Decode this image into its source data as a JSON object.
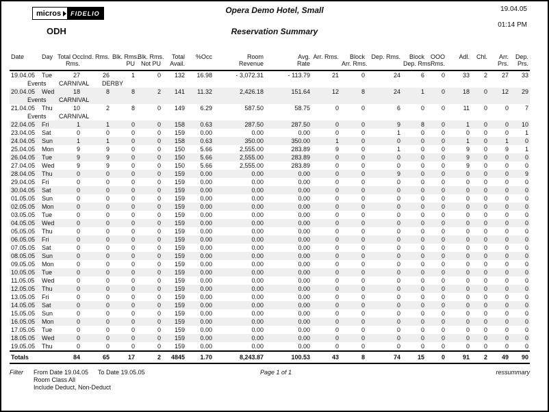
{
  "header": {
    "logo": {
      "micros": "micros",
      "fidelio": "FIDELIO"
    },
    "property_code": "ODH",
    "hotel_name": "Opera Demo Hotel, Small",
    "report_title": "Reservation Summary",
    "report_date": "19.04.05",
    "report_time": "01:14 PM"
  },
  "table": {
    "events_label": "Events",
    "columns": [
      {
        "key": "date",
        "label_lines": [
          "Date"
        ],
        "align": "left"
      },
      {
        "key": "day",
        "label_lines": [
          "Day"
        ],
        "align": "left"
      },
      {
        "key": "total-occ-rms",
        "label_lines": [
          "Total Occ.",
          "Rms."
        ],
        "align": "right"
      },
      {
        "key": "ind-rms",
        "label_lines": [
          "Ind. Rms."
        ],
        "align": "right"
      },
      {
        "key": "blk-rms-pu",
        "label_lines": [
          "Blk. Rms.",
          "PU"
        ],
        "align": "right"
      },
      {
        "key": "blk-rms-not-pu",
        "label_lines": [
          "Blk. Rms.",
          "Not PU"
        ],
        "align": "right"
      },
      {
        "key": "total-avail",
        "label_lines": [
          "Total",
          "Avail."
        ],
        "align": "right"
      },
      {
        "key": "pct-occ",
        "label_lines": [
          "%Occ"
        ],
        "align": "right"
      },
      {
        "key": "room-revenue",
        "label_lines": [
          "Room",
          "Revenue"
        ],
        "align": "right"
      },
      {
        "key": "avg-rate",
        "label_lines": [
          "Avg.",
          "Rate"
        ],
        "align": "right"
      },
      {
        "key": "arr-rms",
        "label_lines": [
          "Arr. Rms."
        ],
        "align": "right"
      },
      {
        "key": "block-arr-rms",
        "label_lines": [
          "Block",
          "Arr. Rms."
        ],
        "align": "right"
      },
      {
        "key": "dep-rms",
        "label_lines": [
          "Dep. Rms."
        ],
        "align": "right"
      },
      {
        "key": "block-dep-rms",
        "label_lines": [
          "Block",
          "Dep. Rms."
        ],
        "align": "right"
      },
      {
        "key": "ooo-rms",
        "label_lines": [
          "OOO",
          "Rms."
        ],
        "align": "right"
      },
      {
        "key": "adl",
        "label_lines": [
          "Adl."
        ],
        "align": "right"
      },
      {
        "key": "chl",
        "label_lines": [
          "Chl."
        ],
        "align": "right"
      },
      {
        "key": "arr-prs",
        "label_lines": [
          "Arr.",
          "Prs."
        ],
        "align": "right"
      },
      {
        "key": "dep-prs",
        "label_lines": [
          "Dep.",
          "Prs."
        ],
        "align": "right"
      }
    ],
    "rows": [
      {
        "date": "19.04.05",
        "day": "Tue",
        "values": [
          "27",
          "26",
          "1",
          "0",
          "132",
          "16.98",
          "- 3,072.31",
          "- 113.79",
          "21",
          "0",
          "24",
          "6",
          "0",
          "33",
          "2",
          "27",
          "33"
        ],
        "events": [
          "CARNIVAL",
          "DERBY"
        ]
      },
      {
        "date": "20.04.05",
        "day": "Wed",
        "values": [
          "18",
          "8",
          "8",
          "2",
          "141",
          "11.32",
          "2,426.18",
          "151.64",
          "12",
          "8",
          "24",
          "1",
          "0",
          "18",
          "0",
          "12",
          "29"
        ],
        "events": [
          "CARNIVAL"
        ]
      },
      {
        "date": "21.04.05",
        "day": "Thu",
        "values": [
          "10",
          "2",
          "8",
          "0",
          "149",
          "6.29",
          "587.50",
          "58.75",
          "0",
          "0",
          "6",
          "0",
          "0",
          "11",
          "0",
          "0",
          "7"
        ],
        "events": [
          "CARNIVAL"
        ]
      },
      {
        "date": "22.04.05",
        "day": "Fri",
        "values": [
          "1",
          "1",
          "0",
          "0",
          "158",
          "0.63",
          "287.50",
          "287.50",
          "0",
          "0",
          "9",
          "8",
          "0",
          "1",
          "0",
          "0",
          "10"
        ]
      },
      {
        "date": "23.04.05",
        "day": "Sat",
        "values": [
          "0",
          "0",
          "0",
          "0",
          "159",
          "0.00",
          "0.00",
          "0.00",
          "0",
          "0",
          "1",
          "0",
          "0",
          "0",
          "0",
          "0",
          "1"
        ]
      },
      {
        "date": "24.04.05",
        "day": "Sun",
        "values": [
          "1",
          "1",
          "0",
          "0",
          "158",
          "0.63",
          "350.00",
          "350.00",
          "1",
          "0",
          "0",
          "0",
          "0",
          "1",
          "0",
          "1",
          "0"
        ]
      },
      {
        "date": "25.04.05",
        "day": "Mon",
        "values": [
          "9",
          "9",
          "0",
          "0",
          "150",
          "5.66",
          "2,555.00",
          "283.89",
          "9",
          "0",
          "1",
          "0",
          "0",
          "9",
          "0",
          "9",
          "1"
        ]
      },
      {
        "date": "26.04.05",
        "day": "Tue",
        "values": [
          "9",
          "9",
          "0",
          "0",
          "150",
          "5.66",
          "2,555.00",
          "283.89",
          "0",
          "0",
          "0",
          "0",
          "0",
          "9",
          "0",
          "0",
          "0"
        ]
      },
      {
        "date": "27.04.05",
        "day": "Wed",
        "values": [
          "9",
          "9",
          "0",
          "0",
          "150",
          "5.66",
          "2,555.00",
          "283.89",
          "0",
          "0",
          "0",
          "0",
          "0",
          "9",
          "0",
          "0",
          "0"
        ]
      },
      {
        "date": "28.04.05",
        "day": "Thu",
        "values": [
          "0",
          "0",
          "0",
          "0",
          "159",
          "0.00",
          "0.00",
          "0.00",
          "0",
          "0",
          "9",
          "0",
          "0",
          "0",
          "0",
          "0",
          "9"
        ]
      },
      {
        "date": "29.04.05",
        "day": "Fri",
        "values": [
          "0",
          "0",
          "0",
          "0",
          "159",
          "0.00",
          "0.00",
          "0.00",
          "0",
          "0",
          "0",
          "0",
          "0",
          "0",
          "0",
          "0",
          "0"
        ]
      },
      {
        "date": "30.04.05",
        "day": "Sat",
        "values": [
          "0",
          "0",
          "0",
          "0",
          "159",
          "0.00",
          "0.00",
          "0.00",
          "0",
          "0",
          "0",
          "0",
          "0",
          "0",
          "0",
          "0",
          "0"
        ]
      },
      {
        "date": "01.05.05",
        "day": "Sun",
        "values": [
          "0",
          "0",
          "0",
          "0",
          "159",
          "0.00",
          "0.00",
          "0.00",
          "0",
          "0",
          "0",
          "0",
          "0",
          "0",
          "0",
          "0",
          "0"
        ]
      },
      {
        "date": "02.05.05",
        "day": "Mon",
        "values": [
          "0",
          "0",
          "0",
          "0",
          "159",
          "0.00",
          "0.00",
          "0.00",
          "0",
          "0",
          "0",
          "0",
          "0",
          "0",
          "0",
          "0",
          "0"
        ]
      },
      {
        "date": "03.05.05",
        "day": "Tue",
        "values": [
          "0",
          "0",
          "0",
          "0",
          "159",
          "0.00",
          "0.00",
          "0.00",
          "0",
          "0",
          "0",
          "0",
          "0",
          "0",
          "0",
          "0",
          "0"
        ]
      },
      {
        "date": "04.05.05",
        "day": "Wed",
        "values": [
          "0",
          "0",
          "0",
          "0",
          "159",
          "0.00",
          "0.00",
          "0.00",
          "0",
          "0",
          "0",
          "0",
          "0",
          "0",
          "0",
          "0",
          "0"
        ]
      },
      {
        "date": "05.05.05",
        "day": "Thu",
        "values": [
          "0",
          "0",
          "0",
          "0",
          "159",
          "0.00",
          "0.00",
          "0.00",
          "0",
          "0",
          "0",
          "0",
          "0",
          "0",
          "0",
          "0",
          "0"
        ]
      },
      {
        "date": "06.05.05",
        "day": "Fri",
        "values": [
          "0",
          "0",
          "0",
          "0",
          "159",
          "0.00",
          "0.00",
          "0.00",
          "0",
          "0",
          "0",
          "0",
          "0",
          "0",
          "0",
          "0",
          "0"
        ]
      },
      {
        "date": "07.05.05",
        "day": "Sat",
        "values": [
          "0",
          "0",
          "0",
          "0",
          "159",
          "0.00",
          "0.00",
          "0.00",
          "0",
          "0",
          "0",
          "0",
          "0",
          "0",
          "0",
          "0",
          "0"
        ]
      },
      {
        "date": "08.05.05",
        "day": "Sun",
        "values": [
          "0",
          "0",
          "0",
          "0",
          "159",
          "0.00",
          "0.00",
          "0.00",
          "0",
          "0",
          "0",
          "0",
          "0",
          "0",
          "0",
          "0",
          "0"
        ]
      },
      {
        "date": "09.05.05",
        "day": "Mon",
        "values": [
          "0",
          "0",
          "0",
          "0",
          "159",
          "0.00",
          "0.00",
          "0.00",
          "0",
          "0",
          "0",
          "0",
          "0",
          "0",
          "0",
          "0",
          "0"
        ]
      },
      {
        "date": "10.05.05",
        "day": "Tue",
        "values": [
          "0",
          "0",
          "0",
          "0",
          "159",
          "0.00",
          "0.00",
          "0.00",
          "0",
          "0",
          "0",
          "0",
          "0",
          "0",
          "0",
          "0",
          "0"
        ]
      },
      {
        "date": "11.05.05",
        "day": "Wed",
        "values": [
          "0",
          "0",
          "0",
          "0",
          "159",
          "0.00",
          "0.00",
          "0.00",
          "0",
          "0",
          "0",
          "0",
          "0",
          "0",
          "0",
          "0",
          "0"
        ]
      },
      {
        "date": "12.05.05",
        "day": "Thu",
        "values": [
          "0",
          "0",
          "0",
          "0",
          "159",
          "0.00",
          "0.00",
          "0.00",
          "0",
          "0",
          "0",
          "0",
          "0",
          "0",
          "0",
          "0",
          "0"
        ]
      },
      {
        "date": "13.05.05",
        "day": "Fri",
        "values": [
          "0",
          "0",
          "0",
          "0",
          "159",
          "0.00",
          "0.00",
          "0.00",
          "0",
          "0",
          "0",
          "0",
          "0",
          "0",
          "0",
          "0",
          "0"
        ]
      },
      {
        "date": "14.05.05",
        "day": "Sat",
        "values": [
          "0",
          "0",
          "0",
          "0",
          "159",
          "0.00",
          "0.00",
          "0.00",
          "0",
          "0",
          "0",
          "0",
          "0",
          "0",
          "0",
          "0",
          "0"
        ]
      },
      {
        "date": "15.05.05",
        "day": "Sun",
        "values": [
          "0",
          "0",
          "0",
          "0",
          "159",
          "0.00",
          "0.00",
          "0.00",
          "0",
          "0",
          "0",
          "0",
          "0",
          "0",
          "0",
          "0",
          "0"
        ]
      },
      {
        "date": "16.05.05",
        "day": "Mon",
        "values": [
          "0",
          "0",
          "0",
          "0",
          "159",
          "0.00",
          "0.00",
          "0.00",
          "0",
          "0",
          "0",
          "0",
          "0",
          "0",
          "0",
          "0",
          "0"
        ]
      },
      {
        "date": "17.05.05",
        "day": "Tue",
        "values": [
          "0",
          "0",
          "0",
          "0",
          "159",
          "0.00",
          "0.00",
          "0.00",
          "0",
          "0",
          "0",
          "0",
          "0",
          "0",
          "0",
          "0",
          "0"
        ]
      },
      {
        "date": "18.05.05",
        "day": "Wed",
        "values": [
          "0",
          "0",
          "0",
          "0",
          "159",
          "0.00",
          "0.00",
          "0.00",
          "0",
          "0",
          "0",
          "0",
          "0",
          "0",
          "0",
          "0",
          "0"
        ]
      },
      {
        "date": "19.05.05",
        "day": "Thu",
        "values": [
          "0",
          "0",
          "0",
          "0",
          "159",
          "0.00",
          "0.00",
          "0.00",
          "0",
          "0",
          "0",
          "0",
          "0",
          "0",
          "0",
          "0",
          "0"
        ]
      }
    ],
    "totals": {
      "label": "Totals",
      "values": [
        "84",
        "65",
        "17",
        "2",
        "4845",
        "1.70",
        "8,243.87",
        "100.53",
        "43",
        "8",
        "74",
        "15",
        "0",
        "91",
        "2",
        "49",
        "90"
      ]
    }
  },
  "footer": {
    "filter_label": "Filter",
    "from_date": "From Date 19.04.05",
    "to_date": "To Date 19.05.05",
    "room_class": "Room Class All",
    "include": "Include Deduct, Non-Deduct",
    "page": "Page 1 of 1",
    "report_code": "ressummary"
  },
  "colors": {
    "stripe": "#efefef",
    "rule": "#000000"
  }
}
